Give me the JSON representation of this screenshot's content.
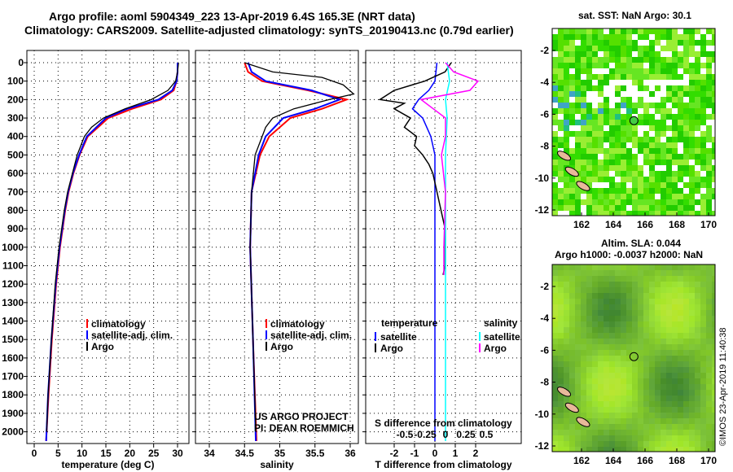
{
  "header": {
    "title1": "Argo profile: aoml 5904349_223 13-Apr-2019 6.4S 165.3E (NRT data)",
    "title2": "Climatology: CARS2009. Satellite-adjusted climatology: synTS_20190413.nc (0.79d earlier)"
  },
  "colors": {
    "clim": "#ff0000",
    "sat": "#0000ff",
    "argo": "#000000",
    "sat_s": "#00ffff",
    "argo_s": "#ff00ff"
  },
  "chart_data": [
    {
      "type": "line",
      "title": "",
      "xlabel": "temperature (deg C)",
      "ylabel": "",
      "xlim": [
        -2,
        31.5
      ],
      "ylim": [
        2070,
        -70
      ],
      "xticks": [
        "0",
        "5",
        "10",
        "15",
        "20",
        "25",
        "30"
      ],
      "yticks": [
        "0",
        "100",
        "200",
        "300",
        "400",
        "500",
        "600",
        "700",
        "800",
        "900",
        "1000",
        "1100",
        "1200",
        "1300",
        "1400",
        "1500",
        "1600",
        "1700",
        "1800",
        "1900",
        "2000"
      ],
      "legend": [
        "climatology",
        "satellite-adj. clim.",
        "Argo"
      ],
      "series": [
        {
          "name": "climatology",
          "depth": [
            0,
            50,
            100,
            150,
            200,
            250,
            300,
            400,
            500,
            600,
            700,
            800,
            1000,
            1200,
            1500,
            1800,
            2050
          ],
          "values": [
            30,
            30,
            29.8,
            29.2,
            26.5,
            20.5,
            15.5,
            11.2,
            9.5,
            8.2,
            7.2,
            6.5,
            5.4,
            4.6,
            3.7,
            3.0,
            2.5
          ]
        },
        {
          "name": "satellite-adj. clim.",
          "depth": [
            0,
            50,
            100,
            150,
            200,
            250,
            300,
            400,
            500,
            600,
            700,
            800,
            1000,
            1200,
            1500,
            1800,
            2050
          ],
          "values": [
            30,
            30,
            29.8,
            28.9,
            26,
            19.5,
            15,
            11,
            9.4,
            8.1,
            7.1,
            6.4,
            5.3,
            4.5,
            3.6,
            2.9,
            2.5
          ]
        },
        {
          "name": "Argo",
          "depth": [
            0,
            50,
            100,
            150,
            200,
            250,
            300,
            350,
            400,
            500,
            600,
            700,
            800,
            1000,
            1200,
            1500,
            1800,
            2000
          ],
          "values": [
            30.2,
            30,
            29.6,
            28,
            24.5,
            19,
            14.5,
            12,
            10.5,
            9,
            8,
            7,
            6.3,
            5.2,
            4.4,
            3.6,
            2.9,
            2.6
          ]
        }
      ]
    },
    {
      "type": "line",
      "xlabel": "salinity",
      "xlim": [
        33.6,
        36.2
      ],
      "ylim": [
        2070,
        -70
      ],
      "xticks": [
        "34",
        "34.5",
        "35",
        "35.5",
        "36"
      ],
      "legend": [
        "climatology",
        "satellite-adj. clim.",
        "Argo"
      ],
      "series": [
        {
          "name": "climatology",
          "depth": [
            0,
            50,
            100,
            150,
            200,
            250,
            300,
            400,
            500,
            700,
            1000,
            1500,
            2050
          ],
          "values": [
            34.5,
            34.55,
            34.75,
            35.4,
            35.95,
            35.6,
            35.15,
            34.85,
            34.72,
            34.6,
            34.58,
            34.62,
            34.67
          ]
        },
        {
          "name": "satellite-adj. clim.",
          "depth": [
            0,
            50,
            100,
            150,
            200,
            250,
            300,
            400,
            500,
            700,
            1000,
            1500,
            2050
          ],
          "values": [
            34.55,
            34.6,
            34.8,
            35.45,
            35.85,
            35.5,
            35.05,
            34.8,
            34.7,
            34.6,
            34.58,
            34.62,
            34.66
          ]
        },
        {
          "name": "Argo",
          "depth": [
            0,
            50,
            80,
            120,
            170,
            200,
            250,
            300,
            350,
            400,
            500,
            700,
            1000,
            1500,
            2000
          ],
          "values": [
            34.5,
            34.9,
            35.6,
            35.9,
            36.05,
            35.7,
            35.2,
            34.9,
            34.8,
            34.75,
            34.65,
            34.6,
            34.58,
            34.62,
            34.66
          ]
        }
      ],
      "annotation": [
        "US ARGO PROJECT",
        "PI: DEAN ROEMMICH"
      ]
    },
    {
      "type": "line",
      "xlabel": "T difference from climatology",
      "xlabel2": "S difference from climatology",
      "xlim": [
        -2.8,
        3
      ],
      "ylim": [
        2070,
        -70
      ],
      "xticks": [
        "-2",
        "-1",
        "0",
        "1",
        "2"
      ],
      "xticks2": [
        "-0.5",
        "-0.25",
        "0",
        "0.25",
        "0.5"
      ],
      "legend_t": {
        "title": "temperature",
        "items": [
          "satellite",
          "Argo"
        ]
      },
      "legend_s": {
        "title": "salinity",
        "items": [
          "satellite",
          "Argo"
        ]
      },
      "series": [
        {
          "name": "T satellite",
          "depth": [
            0,
            100,
            150,
            200,
            250,
            300,
            400,
            500,
            1000,
            2050
          ],
          "values": [
            0.1,
            0,
            -0.3,
            -0.8,
            -1.1,
            -0.6,
            -0.2,
            0,
            0,
            0
          ]
        },
        {
          "name": "T Argo",
          "depth": [
            0,
            50,
            100,
            150,
            200,
            220,
            250,
            300,
            350,
            400,
            450,
            500,
            550,
            600,
            700,
            800,
            900,
            1000,
            1100,
            1150
          ],
          "values": [
            0.8,
            0.5,
            -0.5,
            -2,
            -2.7,
            -1.5,
            -2,
            -1.2,
            -1.5,
            -0.9,
            -1,
            -0.6,
            -0.3,
            -0.1,
            0.1,
            0.3,
            0.5,
            0.5,
            0.5,
            0.4
          ]
        },
        {
          "name": "S satellite",
          "depth": [
            0,
            100,
            200,
            300,
            500,
            1000,
            2050
          ],
          "values": [
            0.02,
            0.05,
            0,
            0.02,
            0,
            0,
            0
          ]
        },
        {
          "name": "S Argo",
          "depth": [
            0,
            50,
            100,
            150,
            200,
            250,
            300,
            400,
            500,
            700,
            1000,
            1150
          ],
          "values": [
            0,
            0.1,
            0.4,
            0.3,
            -0.3,
            -0.15,
            0,
            0,
            -0.05,
            0,
            -0.02,
            -0.02
          ]
        }
      ]
    }
  ],
  "maps": [
    {
      "title": "sat. SST: NaN Argo: 30.1",
      "xticks": [
        "162",
        "164",
        "166",
        "168",
        "170"
      ],
      "yticks": [
        "-2",
        "-4",
        "-6",
        "-8",
        "-10",
        "-12"
      ]
    },
    {
      "title": "Altim. SLA: 0.044",
      "subtitle": "Argo h1000: -0.0037 h2000: NaN",
      "xticks": [
        "162",
        "164",
        "166",
        "168",
        "170"
      ],
      "yticks": [
        "-2",
        "-4",
        "-6",
        "-8",
        "-10",
        "-12"
      ]
    }
  ],
  "footer": {
    "credit": "©IMOS 23-Apr-2019 11:40:38"
  }
}
